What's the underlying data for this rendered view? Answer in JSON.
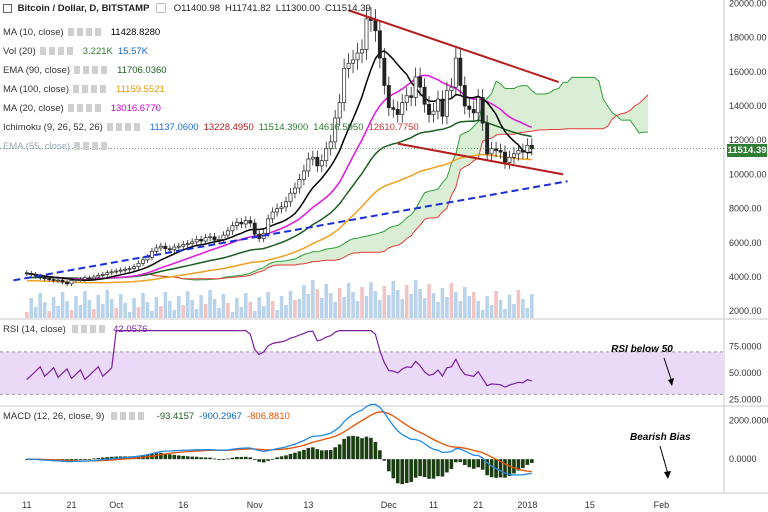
{
  "header": {
    "title": "Bitcoin / Dollar, D, BITSTAMP",
    "ohlc": [
      "O11400.98",
      "H11741.82",
      "L11300.00",
      "C11514.39"
    ]
  },
  "indicators": [
    {
      "label": "MA (10, close)",
      "values": [
        "11428.8280"
      ],
      "colors": [
        "#000000"
      ]
    },
    {
      "label": "Vol (20)",
      "values": [
        "3.221K",
        "15.57K"
      ],
      "colors": [
        "#2e7d32",
        "#1565c0"
      ]
    },
    {
      "label": "EMA (90, close)",
      "values": [
        "11706.0360"
      ],
      "colors": [
        "#1b5e20"
      ]
    },
    {
      "label": "MA (100, close)",
      "values": [
        "11159.5521"
      ],
      "colors": [
        "#e69a00"
      ]
    },
    {
      "label": "MA (20, close)",
      "values": [
        "13016.6770"
      ],
      "colors": [
        "#d500d5"
      ]
    },
    {
      "label": "Ichimoku (9, 26, 52, 26)",
      "values": [
        "11137.0600",
        "13228.4950",
        "11514.3900",
        "14616.5950",
        "12610.7750"
      ],
      "colors": [
        "#1e6fd9",
        "#b71c1c",
        "#2e7d32",
        "#2e7d32",
        "#d32f2f"
      ]
    },
    {
      "label": "EMA (55, close)",
      "values": [],
      "colors": []
    }
  ],
  "rsi_legend": {
    "label": "RSI (14, close)",
    "value": "42.0576"
  },
  "macd_legend": {
    "label": "MACD (12, 26, close, 9)",
    "values": [
      "-93.4157",
      "-900.2967",
      "-806.8810"
    ],
    "colors": [
      "#1b5e20",
      "#1565c0",
      "#e65100"
    ]
  },
  "annotations": {
    "rsi": "RSI below 50",
    "macd": "Bearish Bias"
  },
  "price_badge": "11514.39",
  "colors": {
    "price_badge_bg": "#2e7d32",
    "rsi_fill": "#ead9f7",
    "rsi_line": "#7b1fa2"
  },
  "chart_data": {
    "type": "candlestick",
    "price_axis": {
      "ticks": [
        "20000.00",
        "18000.00",
        "16000.00",
        "14000.00",
        "12000.00",
        "10000.00",
        "8000.00",
        "6000.00",
        "4000.00",
        "2000.00"
      ],
      "ylim": [
        1600,
        20200
      ]
    },
    "rsi_axis": {
      "ticks": [
        "75.0000",
        "50.0000",
        "25.0000"
      ],
      "ylim": [
        20,
        100
      ],
      "band": [
        30,
        70
      ]
    },
    "macd_axis": {
      "ticks": [
        "2000.0000",
        "0.0000"
      ],
      "ylim": [
        -1700,
        2700
      ]
    },
    "x_ticks": [
      "11",
      "21",
      "Oct",
      "16",
      "Nov",
      "13",
      "Dec",
      "11",
      "21",
      "2018",
      "15",
      "Feb"
    ],
    "x_tick_days": [
      0,
      10,
      20,
      35,
      51,
      63,
      81,
      91,
      101,
      112,
      126,
      142
    ],
    "day_range": [
      -6,
      156
    ],
    "close": [
      4200,
      4150,
      4050,
      3950,
      3900,
      3850,
      3800,
      3820,
      3700,
      3600,
      3800,
      3850,
      3850,
      3950,
      3900,
      4000,
      4100,
      4150,
      4250,
      4300,
      4350,
      4400,
      4450,
      4500,
      4600,
      4800,
      5000,
      5150,
      5500,
      5700,
      5800,
      5650,
      5600,
      5750,
      5800,
      5900,
      5950,
      6050,
      6200,
      6100,
      6300,
      6350,
      6150,
      6200,
      6450,
      6700,
      7000,
      7200,
      7100,
      7300,
      7150,
      6500,
      6250,
      6550,
      7400,
      7800,
      8000,
      8100,
      8400,
      8900,
      9200,
      9700,
      10200,
      10900,
      11000,
      10500,
      10800,
      11500,
      11900,
      13300,
      14200,
      16200,
      16500,
      16700,
      17100,
      17300,
      19100,
      19000,
      18400,
      16800,
      15200,
      13900,
      13800,
      13500,
      14200,
      14600,
      14500,
      15700,
      15100,
      14100,
      13500,
      13700,
      14400,
      13400,
      14900,
      15100,
      16800,
      15200,
      14000,
      13800,
      13600,
      14500,
      13000,
      11200,
      11500,
      11400,
      11300,
      10700,
      11000,
      11200,
      11400,
      11300,
      11700,
      11500
    ],
    "annotation_lines": [
      {
        "name": "upper-trendline",
        "points": [
          [
            72,
            19600
          ],
          [
            119,
            15400
          ]
        ]
      },
      {
        "name": "lower-trendline",
        "points": [
          [
            83,
            11800
          ],
          [
            120,
            10000
          ]
        ]
      },
      {
        "name": "support-trendline",
        "points": [
          [
            -3,
            3800
          ],
          [
            121,
            9600
          ]
        ]
      }
    ]
  }
}
